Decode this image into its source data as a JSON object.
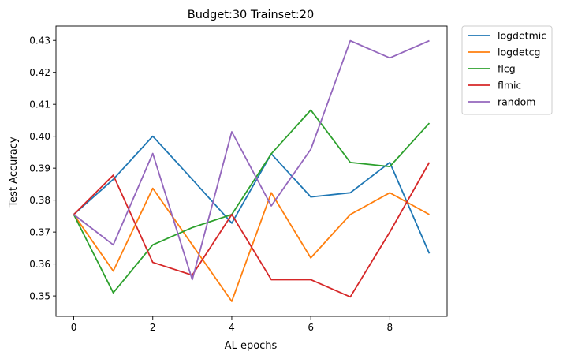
{
  "chart_data": {
    "type": "line",
    "title": "Budget:30  Trainset:20",
    "xlabel": "AL epochs",
    "ylabel": "Test Accuracy",
    "xlim": [
      -0.45,
      9.45
    ],
    "ylim": [
      0.3436,
      0.4345
    ],
    "xticks": [
      0,
      2,
      4,
      6,
      8
    ],
    "yticks": [
      0.35,
      0.36,
      0.37,
      0.38,
      0.39,
      0.4,
      0.41,
      0.42,
      0.43
    ],
    "ytick_labels": [
      "0.35",
      "0.36",
      "0.37",
      "0.38",
      "0.39",
      "0.40",
      "0.41",
      "0.42",
      "0.43"
    ],
    "legend_position": "outside-top-right",
    "grid": false,
    "x": [
      0,
      1,
      2,
      3,
      4,
      5,
      6,
      7,
      8,
      9
    ],
    "series": [
      {
        "name": "logdetmic",
        "color": "#1f77b4",
        "values": [
          0.3755,
          0.3865,
          0.4,
          0.3865,
          0.3728,
          0.3945,
          0.381,
          0.3823,
          0.3918,
          0.3633
        ]
      },
      {
        "name": "logdetcg",
        "color": "#ff7f0e",
        "values": [
          0.3755,
          0.3578,
          0.3837,
          0.366,
          0.3483,
          0.3823,
          0.3619,
          0.3755,
          0.3823,
          0.3755
        ]
      },
      {
        "name": "flcg",
        "color": "#2ca02c",
        "values": [
          0.3755,
          0.351,
          0.366,
          0.3714,
          0.3755,
          0.3945,
          0.4082,
          0.3918,
          0.3905,
          0.4041
        ]
      },
      {
        "name": "flmic",
        "color": "#d62728",
        "values": [
          0.3755,
          0.3878,
          0.3605,
          0.3565,
          0.3755,
          0.3551,
          0.3551,
          0.3497,
          0.37,
          0.3918
        ]
      },
      {
        "name": "random",
        "color": "#9467bd",
        "values": [
          0.3755,
          0.366,
          0.3946,
          0.3551,
          0.4014,
          0.3782,
          0.3959,
          0.4299,
          0.4245,
          0.4299
        ]
      }
    ]
  }
}
